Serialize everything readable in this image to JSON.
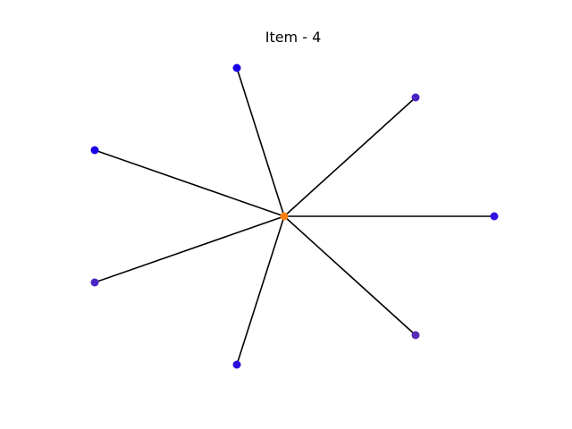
{
  "title": "Item - 4",
  "graph": {
    "center": {
      "color": "#ff7f0e"
    },
    "edge_color": "#000000",
    "leaves": [
      {
        "color": "#1a00e6"
      },
      {
        "color": "#4b25c4"
      },
      {
        "color": "#1a00e6"
      },
      {
        "color": "#3011e0"
      },
      {
        "color": "#4b25c4"
      },
      {
        "color": "#5a2ab8"
      },
      {
        "color": "#2a0fdc"
      }
    ]
  }
}
